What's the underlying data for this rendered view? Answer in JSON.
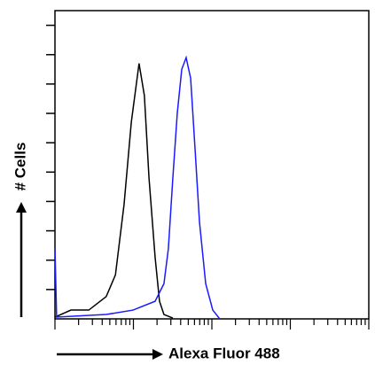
{
  "chart_data": {
    "type": "line",
    "x_label": "Alexa Fluor 488",
    "y_label": "# Cells",
    "x_scale": "log",
    "xlim": [
      1,
      10000
    ],
    "xticks": [
      1,
      2,
      3,
      4,
      5,
      6,
      7,
      8,
      9,
      10,
      20,
      30,
      40,
      50,
      60,
      70,
      80,
      90,
      100,
      200,
      300,
      400,
      500,
      600,
      700,
      800,
      900,
      1000,
      2000,
      3000,
      4000,
      5000,
      6000,
      7000,
      8000,
      9000,
      10000
    ],
    "ylim": [
      0,
      10.5
    ],
    "yticks": [
      1,
      2,
      3,
      4,
      5,
      6,
      7,
      8,
      9,
      10
    ],
    "series": [
      {
        "color": "#000000",
        "x": [
          1,
          1.6,
          2.7,
          4.5,
          5.9,
          7.6,
          9.4,
          11.8,
          13.8,
          15.8,
          18.9,
          21.5,
          24.5,
          31.8
        ],
        "values": [
          0.06,
          0.3,
          0.3,
          0.76,
          1.5,
          3.9,
          6.7,
          8.7,
          7.6,
          4.8,
          2.1,
          0.6,
          0.15,
          0.03
        ]
      },
      {
        "color": "#1a1aff",
        "x": [
          1,
          1.05,
          4.5,
          9.9,
          18.9,
          24.5,
          27.9,
          31.8,
          36.2,
          41.3,
          47,
          53.6,
          61,
          69.5,
          83.4,
          102.6,
          126
        ],
        "values": [
          2.4,
          0.06,
          0.15,
          0.3,
          0.6,
          1.2,
          2.4,
          4.8,
          7.0,
          8.5,
          8.9,
          8.2,
          5.8,
          3.3,
          1.2,
          0.3,
          0
        ]
      }
    ]
  }
}
